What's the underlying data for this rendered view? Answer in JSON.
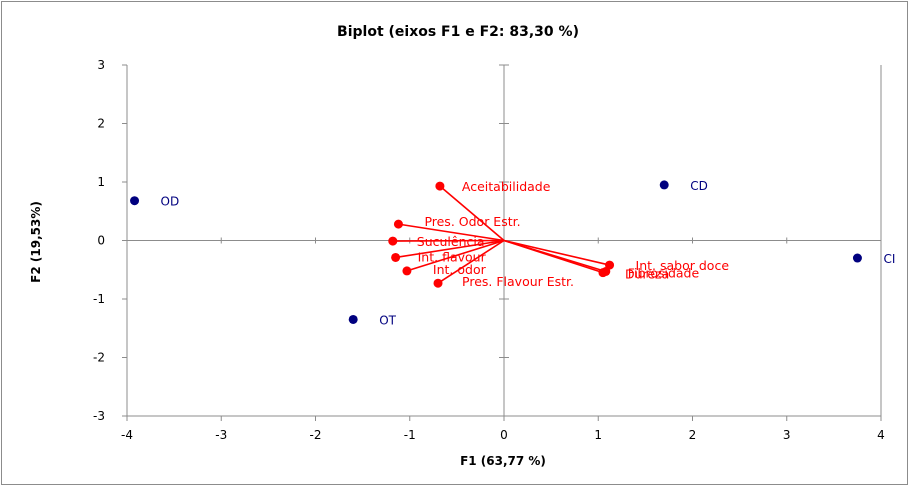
{
  "chart_data": {
    "type": "scatter",
    "title": "Biplot (eixos F1 e F2: 83,30 %)",
    "xlabel": "F1 (63,77 %)",
    "ylabel": "F2 (19,53%)",
    "xlim": [
      -4,
      4
    ],
    "ylim": [
      -3,
      3
    ],
    "x_ticks": [
      "-4",
      "-3",
      "-2",
      "-1",
      "0",
      "1",
      "2",
      "3",
      "4"
    ],
    "y_ticks": [
      "-3",
      "-2",
      "-1",
      "0",
      "1",
      "2",
      "3"
    ],
    "grid": false,
    "legend": "none",
    "observations_color": "#00007f",
    "variables_color": "#ff0000",
    "observations": [
      {
        "label": "OD",
        "x": -3.92,
        "y": 0.68
      },
      {
        "label": "CD",
        "x": 1.7,
        "y": 0.95
      },
      {
        "label": "CI",
        "x": 3.75,
        "y": -0.3
      },
      {
        "label": "OT",
        "x": -1.6,
        "y": -1.35
      }
    ],
    "variables": [
      {
        "label": "Aceitabilidade",
        "x": -0.68,
        "y": 0.93
      },
      {
        "label": "Pres. Odor Estr.",
        "x": -1.12,
        "y": 0.28
      },
      {
        "label": "Suculência",
        "x": -1.18,
        "y": -0.01
      },
      {
        "label": "Int. flavour",
        "x": -1.15,
        "y": -0.29
      },
      {
        "label": "Int. odor",
        "x": -1.03,
        "y": -0.52
      },
      {
        "label": "Pres. Flavour Estr.",
        "x": -0.7,
        "y": -0.73
      },
      {
        "label": "Int. sabor doce",
        "x": 1.12,
        "y": -0.42
      },
      {
        "label": "Dureza",
        "x": 1.05,
        "y": -0.55
      },
      {
        "label": "Fibrosidade",
        "x": 1.08,
        "y": -0.53
      }
    ]
  }
}
